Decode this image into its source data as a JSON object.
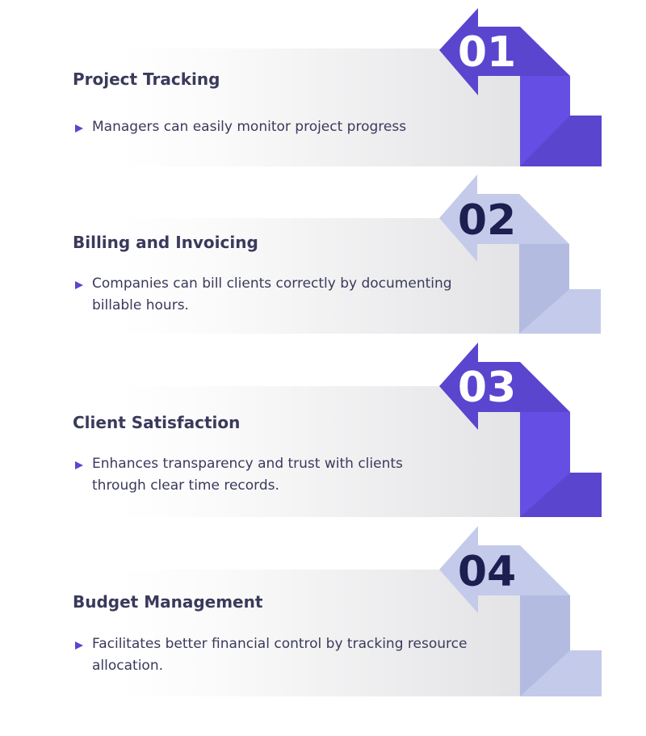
{
  "theme": {
    "accent_dark": "#5a45cf",
    "accent_mid": "#644ee4",
    "accent_light": "#c4caea",
    "accent_light_mid": "#b3bbe0",
    "number_on_dark": "#ffffff",
    "number_on_light": "#1c1f4f",
    "text": "#3a3a5c"
  },
  "steps": [
    {
      "number": "01",
      "title": "Project Tracking",
      "description": "Managers can easily monitor project progress",
      "style": "dark"
    },
    {
      "number": "02",
      "title": "Billing and Invoicing",
      "description": "Companies can bill clients correctly by documenting billable hours.",
      "style": "light"
    },
    {
      "number": "03",
      "title": "Client Satisfaction",
      "description": "Enhances transparency and trust with clients through clear time records.",
      "style": "dark"
    },
    {
      "number": "04",
      "title": "Budget Management",
      "description": "Facilitates better financial control by tracking resource allocation.",
      "style": "light"
    }
  ]
}
